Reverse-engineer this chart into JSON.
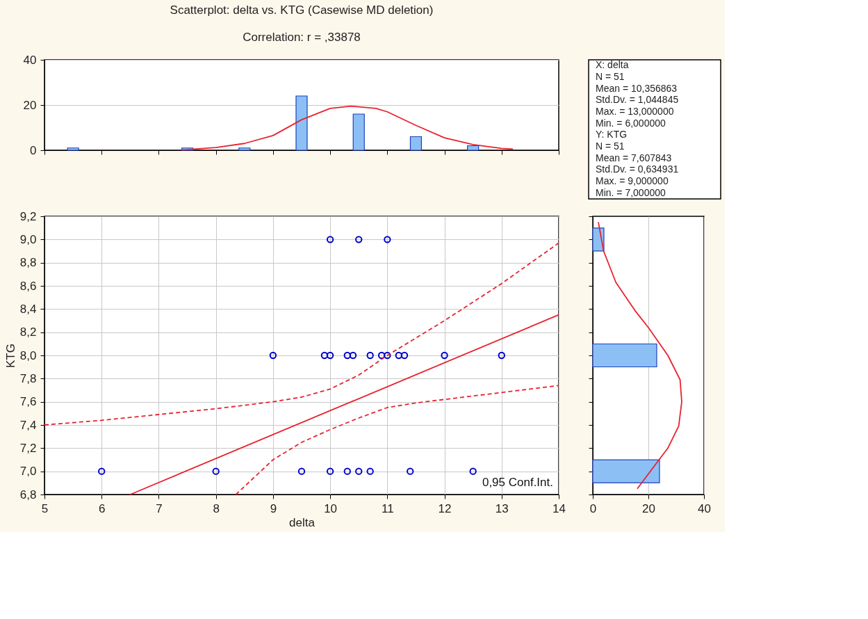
{
  "chart_data": [
    {
      "type": "bar",
      "title": "Scatterplot: delta vs. KTG (Casewise MD deletion)",
      "subtitle": "Correlation: r = ,33878",
      "x": [
        5.5,
        7.5,
        8.5,
        9.5,
        10.5,
        11.5,
        12.5
      ],
      "series": [
        {
          "color": "#8cc0f5",
          "values": [
            1,
            1,
            1,
            24,
            16,
            6,
            2
          ]
        },
        {
          "type": "line",
          "color": "#e8222e",
          "x": [
            7.4,
            7.5,
            8,
            8.5,
            9,
            9.5,
            10,
            10.36,
            10.8,
            11,
            11.5,
            12,
            12.5,
            13,
            13.2
          ],
          "values": [
            0.2,
            0.3,
            1.2,
            3,
            6.5,
            13.5,
            18.5,
            19.5,
            18.5,
            17,
            11,
            5.5,
            2.5,
            0.8,
            0.5
          ]
        }
      ],
      "xlim": [
        5,
        14
      ],
      "xticks": [
        5,
        6,
        7,
        8,
        9,
        10,
        11,
        12,
        13,
        14
      ],
      "ylim": [
        0,
        40
      ],
      "yticks": [
        0,
        20,
        40
      ],
      "tick_labels": "y",
      "grid": "y"
    },
    {
      "type": "scatter",
      "xlabel": "delta",
      "ylabel": "KTG",
      "series": [
        {
          "marker": "circle",
          "color": "#0000cc",
          "x": [
            10,
            10.5,
            11,
            9,
            9.9,
            10,
            10.3,
            10.4,
            10.7,
            10.9,
            11,
            11.2,
            11.3,
            12,
            13,
            6,
            8,
            9.5,
            10,
            10.3,
            10.5,
            10.7,
            11.4,
            12.5
          ],
          "values": [
            9,
            9,
            9,
            8,
            8,
            8,
            8,
            8,
            8,
            8,
            8,
            8,
            8,
            8,
            8,
            7,
            7,
            7,
            7,
            7,
            7,
            7,
            7,
            7
          ]
        },
        {
          "type": "line",
          "color": "#e8222e",
          "x": [
            6.5,
            14
          ],
          "values": [
            6.8,
            8.35
          ]
        },
        {
          "type": "line",
          "color": "#e8222e",
          "line_style": "dashed",
          "x": [
            5,
            6,
            7,
            8,
            9,
            9.5,
            10,
            10.5,
            11,
            12,
            13,
            14
          ],
          "values": [
            7.4,
            7.44,
            7.49,
            7.54,
            7.6,
            7.64,
            7.71,
            7.83,
            8.0,
            8.3,
            8.62,
            8.97
          ]
        },
        {
          "type": "line",
          "color": "#e8222e",
          "line_style": "dashed",
          "x": [
            8.35,
            9,
            9.5,
            10,
            10.5,
            11,
            11.5,
            12,
            13,
            14
          ],
          "values": [
            6.8,
            7.1,
            7.25,
            7.36,
            7.46,
            7.55,
            7.59,
            7.62,
            7.68,
            7.74
          ]
        }
      ],
      "xlim": [
        5,
        14
      ],
      "xticks": [
        5,
        6,
        7,
        8,
        9,
        10,
        11,
        12,
        13,
        14
      ],
      "ylim": [
        6.8,
        9.2
      ],
      "yticks": [
        {
          "value": 6.8,
          "label": "6,8"
        },
        {
          "value": 7.0,
          "label": "7,0"
        },
        {
          "value": 7.2,
          "label": "7,2"
        },
        {
          "value": 7.4,
          "label": "7,4"
        },
        {
          "value": 7.6,
          "label": "7,6"
        },
        {
          "value": 7.8,
          "label": "7,8"
        },
        {
          "value": 8.0,
          "label": "8,0"
        },
        {
          "value": 8.2,
          "label": "8,2"
        },
        {
          "value": 8.4,
          "label": "8,4"
        },
        {
          "value": 8.6,
          "label": "8,6"
        },
        {
          "value": 8.8,
          "label": "8,8"
        },
        {
          "value": 9.0,
          "label": "9,0"
        },
        {
          "value": 9.2,
          "label": "9,2"
        }
      ],
      "grid": true,
      "annotations": [
        "0,95 Conf.Int."
      ]
    },
    {
      "type": "bar",
      "orientation": "horizontal",
      "x": [
        7,
        8,
        9
      ],
      "series": [
        {
          "color": "#8cc0f5",
          "values": [
            24,
            23,
            4
          ]
        },
        {
          "type": "line",
          "color": "#e8222e",
          "x": [
            6.85,
            6.99,
            7.2,
            7.39,
            7.6,
            7.79,
            8.0,
            8.24,
            8.38,
            8.63,
            8.9,
            9.15
          ],
          "values": [
            16,
            20.4,
            27,
            30.9,
            32,
            31.4,
            27,
            20,
            15.4,
            8.3,
            3.9,
            2
          ]
        }
      ],
      "xlim": [
        0,
        40
      ],
      "xticks": [
        0,
        20,
        40
      ],
      "ylim": [
        6.8,
        9.2
      ],
      "yticks": [
        6.8,
        7.0,
        7.2,
        7.4,
        7.6,
        7.8,
        8.0,
        8.2,
        8.4,
        8.6,
        8.8,
        9.0,
        9.2
      ],
      "tick_labels": "x",
      "grid": "x"
    },
    {
      "type": "other",
      "annotations": [
        "X:  delta",
        "N = 51",
        "Mean = 10,356863",
        "Std.Dv. = 1,044845",
        "Max. = 13,000000",
        "Min. = 6,000000",
        "Y:  KTG",
        "N = 51",
        "Mean = 7,607843",
        "Std.Dv. = 0,634931",
        "Max. = 9,000000",
        "Min. = 7,000000"
      ]
    }
  ]
}
